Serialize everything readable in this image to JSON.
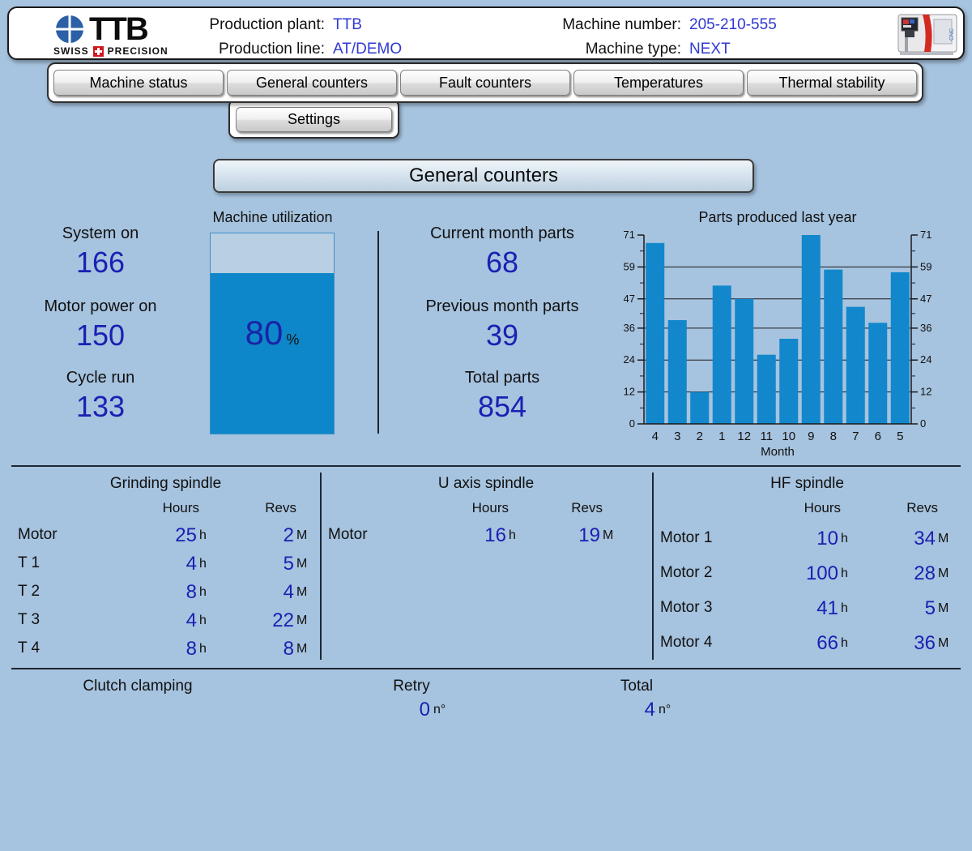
{
  "header": {
    "logo": {
      "brand": "TTB",
      "tagline_left": "SWISS",
      "tagline_right": "PRECISION"
    },
    "fields": [
      {
        "label": "Production plant:",
        "value": "TTB"
      },
      {
        "label": "Production line:",
        "value": "AT/DEMO"
      },
      {
        "label": "Machine number:",
        "value": "205-210-555"
      },
      {
        "label": "Machine type:",
        "value": "NEXT"
      }
    ]
  },
  "nav": {
    "tabs": [
      "Machine status",
      "General counters",
      "Fault counters",
      "Temperatures",
      "Thermal stability"
    ],
    "settings_label": "Settings"
  },
  "page_title": "General counters",
  "stats": {
    "left": [
      {
        "label": "System on",
        "value": "166"
      },
      {
        "label": "Motor power on",
        "value": "150"
      },
      {
        "label": "Cycle run",
        "value": "133"
      }
    ],
    "middle": [
      {
        "label": "Current month parts",
        "value": "68"
      },
      {
        "label": "Previous month parts",
        "value": "39"
      },
      {
        "label": "Total parts",
        "value": "854"
      }
    ]
  },
  "utilization": {
    "label": "Machine utilization",
    "percent": 80,
    "percent_display": "80",
    "unit": "%"
  },
  "chart_data": {
    "type": "bar",
    "title": "Parts produced last year",
    "xlabel": "Month",
    "categories": [
      "4",
      "3",
      "2",
      "1",
      "12",
      "11",
      "10",
      "9",
      "8",
      "7",
      "6",
      "5"
    ],
    "values": [
      68,
      39,
      12,
      52,
      47,
      26,
      32,
      71,
      58,
      44,
      38,
      57
    ],
    "yticks": [
      0,
      12,
      24,
      36,
      47,
      59,
      71
    ],
    "ylim": [
      0,
      71
    ],
    "grid": true,
    "bar_color": "#1287cb"
  },
  "spindles": {
    "hours_header": "Hours",
    "revs_header": "Revs",
    "hours_unit": "h",
    "revs_unit": "M",
    "sections": [
      {
        "title": "Grinding spindle",
        "rows": [
          [
            "Motor",
            "25",
            "2"
          ],
          [
            "T 1",
            "4",
            "5"
          ],
          [
            "T 2",
            "8",
            "4"
          ],
          [
            "T 3",
            "4",
            "22"
          ],
          [
            "T 4",
            "8",
            "8"
          ]
        ]
      },
      {
        "title": "U axis spindle",
        "rows": [
          [
            "Motor",
            "16",
            "19"
          ]
        ]
      },
      {
        "title": "HF spindle",
        "rows": [
          [
            "Motor 1",
            "10",
            "34"
          ],
          [
            "Motor 2",
            "100",
            "28"
          ],
          [
            "Motor 3",
            "41",
            "5"
          ],
          [
            "Motor 4",
            "66",
            "36"
          ]
        ]
      }
    ]
  },
  "clutch": {
    "label": "Clutch clamping",
    "retry_label": "Retry",
    "retry_value": "0",
    "total_label": "Total",
    "total_value": "4",
    "unit": "n°"
  },
  "colors": {
    "page_bg": "#a6c3df",
    "value_blue": "#1b20b2",
    "header_value_blue": "#3038d2",
    "bar_blue": "#1287cb",
    "gauge_fill": "#0d87c9",
    "divider": "#1c2733"
  }
}
